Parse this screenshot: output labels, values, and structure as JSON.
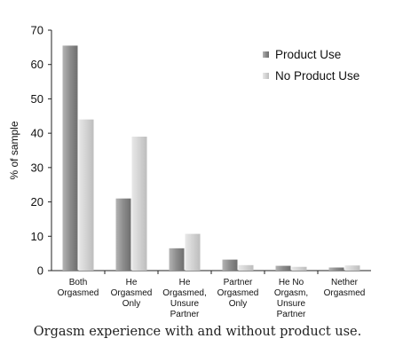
{
  "chart_data": {
    "type": "bar",
    "title": "",
    "ylabel": "% of sample",
    "xlabel": "",
    "ylim": [
      0,
      70
    ],
    "yticks": [
      0,
      10,
      20,
      30,
      40,
      50,
      60,
      70
    ],
    "grid": false,
    "legend_position": "top-right",
    "categories": [
      [
        "Both",
        "Orgasmed"
      ],
      [
        "He",
        "Orgasmed",
        "Only"
      ],
      [
        "He",
        "Orgasmed,",
        "Unsure",
        "Partner"
      ],
      [
        "Partner",
        "Orgasmed",
        "Only"
      ],
      [
        "He No",
        "Orgasm,",
        "Unsure",
        "Partner"
      ],
      [
        "Nether",
        "Orgasmed"
      ]
    ],
    "series": [
      {
        "name": "Product Use",
        "color": "#9a9a9a",
        "values": [
          65.5,
          21,
          6.5,
          3.2,
          1.4,
          0.9
        ]
      },
      {
        "name": "No Product Use",
        "color": "#d4d4d4",
        "values": [
          44,
          39,
          10.7,
          1.6,
          1.1,
          1.5
        ]
      }
    ]
  },
  "caption": "Orgasm experience with and without product use."
}
